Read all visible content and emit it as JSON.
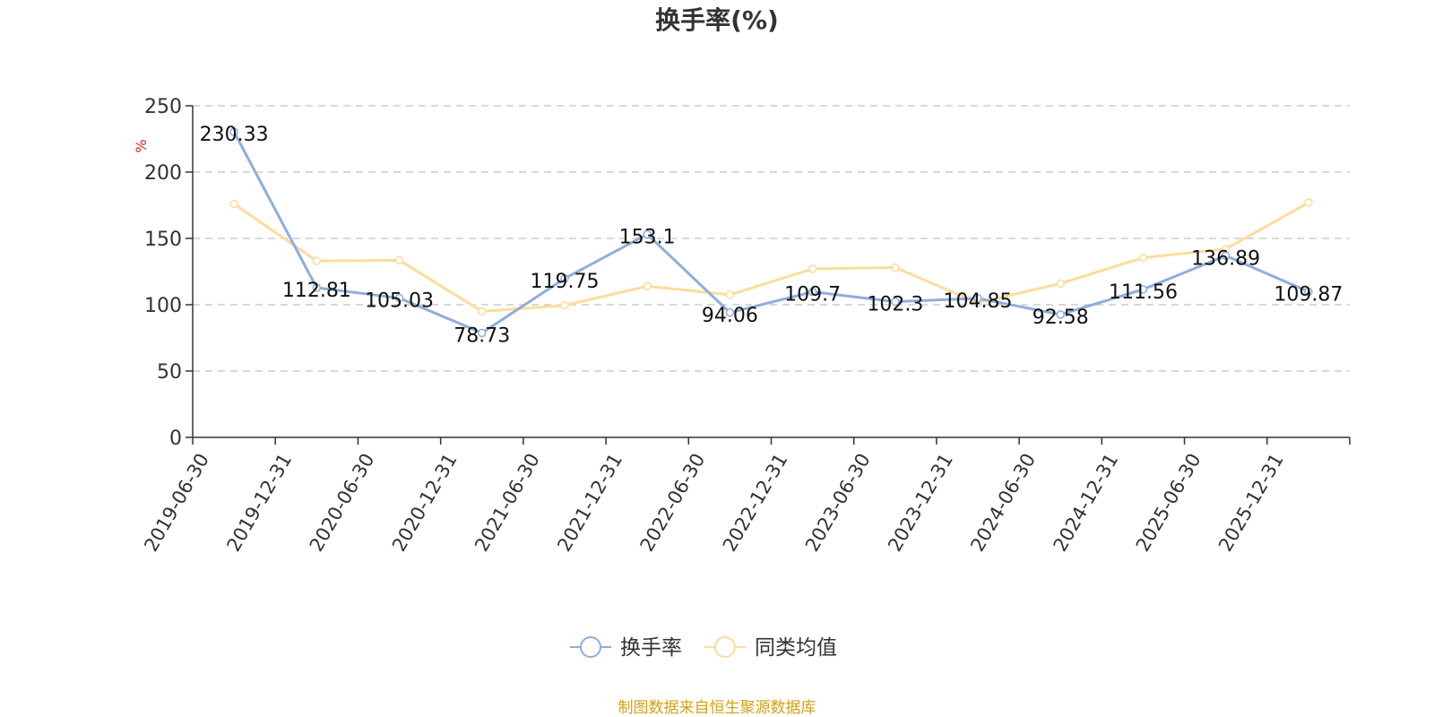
{
  "chart_data": {
    "type": "line",
    "title": "换手率(%)",
    "ylabel": "%",
    "ylim": [
      0,
      250
    ],
    "yticks": [
      0,
      50,
      100,
      150,
      200,
      250
    ],
    "grid": true,
    "legend_position": "bottom-center",
    "categories": [
      "2019-06-30",
      "2019-12-31",
      "2020-06-30",
      "2020-12-31",
      "2021-06-30",
      "2021-12-31",
      "2022-06-30",
      "2022-12-31",
      "2023-06-30",
      "2023-12-31",
      "2024-06-30",
      "2024-12-31",
      "2025-06-30",
      "2025-12-31"
    ],
    "series": [
      {
        "name": "换手率",
        "color": "#8eaedb",
        "values": [
          230.33,
          112.81,
          105.03,
          78.73,
          119.75,
          153.1,
          94.06,
          109.7,
          102.3,
          104.85,
          92.58,
          111.56,
          136.89,
          109.87
        ],
        "labels": [
          "230.33",
          "112.81",
          "105.03",
          "78.73",
          "119.75",
          "153.1",
          "94.06",
          "109.7",
          "102.3",
          "104.85",
          "92.58",
          "111.56",
          "136.89",
          "109.87"
        ]
      },
      {
        "name": "同类均值",
        "color": "#fddc9c",
        "values": [
          176,
          133,
          133.5,
          95,
          99.5,
          114,
          107.5,
          127,
          128,
          101.5,
          116,
          135.5,
          142,
          177
        ]
      }
    ]
  },
  "footer": {
    "source": "制图数据来自恒生聚源数据库",
    "color": "#d4a017"
  },
  "colors": {
    "unit_label": "#e02020",
    "axis": "#333333",
    "grid": "#cccccc"
  }
}
